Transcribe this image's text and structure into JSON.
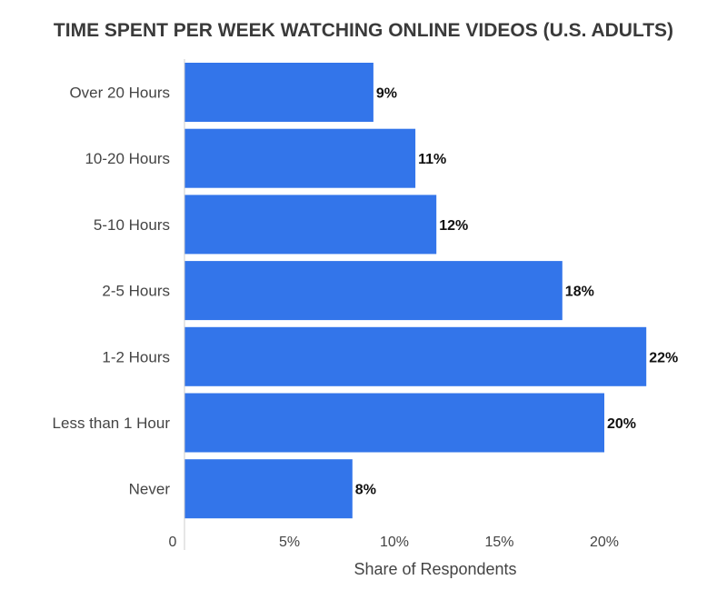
{
  "chart_data": {
    "type": "bar",
    "orientation": "horizontal",
    "title": "TIME SPENT PER WEEK WATCHING ONLINE VIDEOS (U.S. ADULTS)",
    "categories": [
      "Over 20 Hours",
      "10-20 Hours",
      "5-10 Hours",
      "2-5 Hours",
      "1-2 Hours",
      "Less than 1 Hour",
      "Never"
    ],
    "values": [
      9,
      11,
      12,
      18,
      22,
      20,
      8
    ],
    "value_labels": [
      "9%",
      "11%",
      "12%",
      "18%",
      "22%",
      "20%",
      "8%"
    ],
    "xlabel": "Share of Respondents",
    "ylabel": "",
    "xlim": [
      0,
      22
    ],
    "x_ticks": [
      0,
      5,
      10,
      15,
      20
    ],
    "x_tick_labels": [
      "0",
      "5%",
      "10%",
      "15%",
      "20%"
    ],
    "grid": false,
    "bar_color": "#3375ea"
  }
}
